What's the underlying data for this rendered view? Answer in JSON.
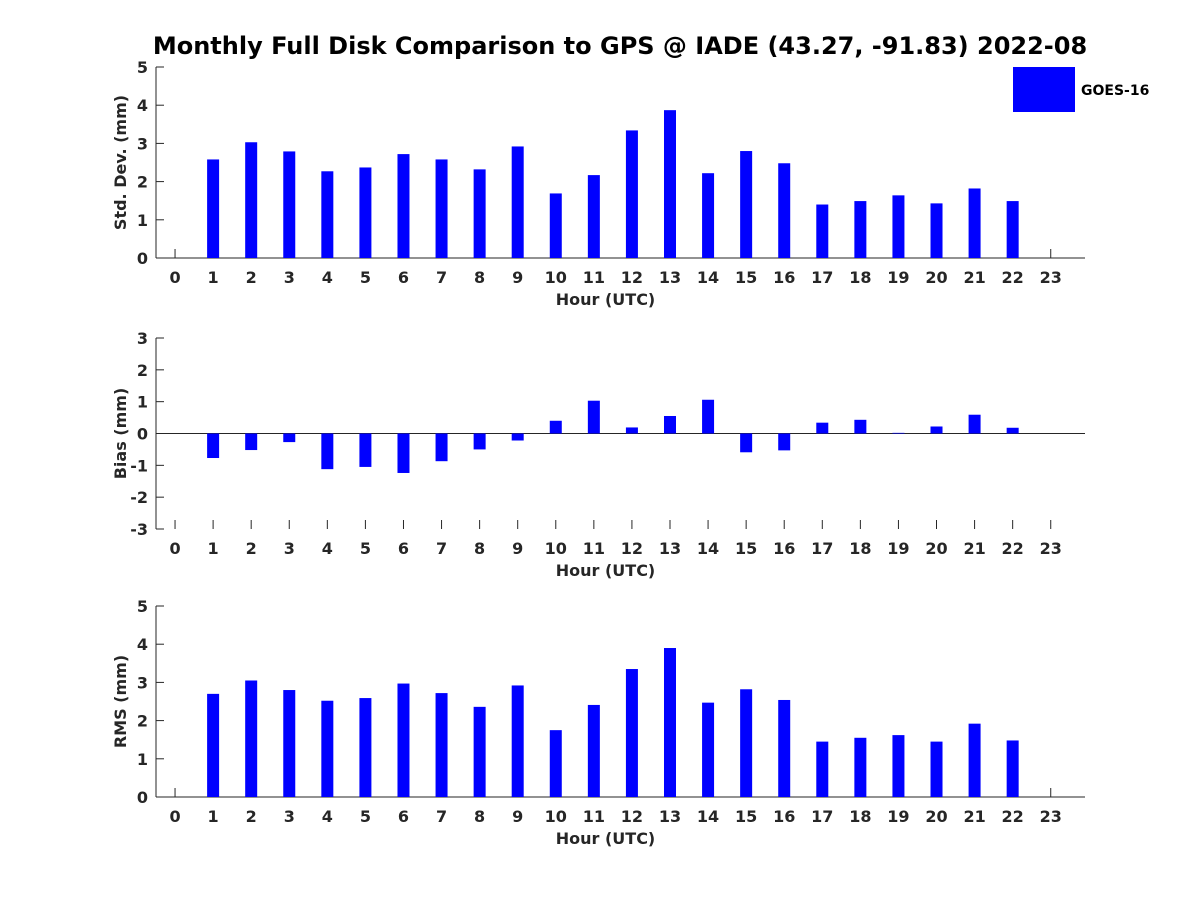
{
  "chart_data": {
    "title": "Monthly Full Disk Comparison to GPS @ IADE (43.27, -91.83) 2022-08",
    "legend": {
      "placement": "top-right",
      "entries": [
        "GOES-16"
      ]
    },
    "color": "#0000ff",
    "panels": [
      {
        "type": "bar",
        "xlabel": "Hour (UTC)",
        "ylabel": "Std. Dev. (mm)",
        "ylim": [
          0,
          5
        ],
        "yticks": [
          0,
          1,
          2,
          3,
          4,
          5
        ],
        "grid": false,
        "x": [
          0,
          1,
          2,
          3,
          4,
          5,
          6,
          7,
          8,
          9,
          10,
          11,
          12,
          13,
          14,
          15,
          16,
          17,
          18,
          19,
          20,
          21,
          22,
          23
        ],
        "series": [
          {
            "name": "GOES-16",
            "values": [
              null,
              2.58,
              3.03,
              2.79,
              2.27,
              2.37,
              2.72,
              2.58,
              2.32,
              2.92,
              1.69,
              2.17,
              3.34,
              3.87,
              2.22,
              2.8,
              2.48,
              1.4,
              1.49,
              1.64,
              1.43,
              1.82,
              1.49,
              null
            ]
          }
        ]
      },
      {
        "type": "bar",
        "xlabel": "Hour (UTC)",
        "ylabel": "Bias (mm)",
        "ylim": [
          -3,
          3
        ],
        "yticks": [
          -3,
          -2,
          -1,
          0,
          1,
          2,
          3
        ],
        "grid": false,
        "x": [
          0,
          1,
          2,
          3,
          4,
          5,
          6,
          7,
          8,
          9,
          10,
          11,
          12,
          13,
          14,
          15,
          16,
          17,
          18,
          19,
          20,
          21,
          22,
          23
        ],
        "series": [
          {
            "name": "GOES-16",
            "values": [
              null,
              -0.77,
              -0.52,
              -0.27,
              -1.12,
              -1.05,
              -1.24,
              -0.87,
              -0.5,
              -0.22,
              0.4,
              1.03,
              0.19,
              0.55,
              1.06,
              -0.59,
              -0.53,
              0.34,
              0.43,
              0.02,
              0.22,
              0.59,
              0.18,
              null
            ]
          }
        ]
      },
      {
        "type": "bar",
        "xlabel": "Hour (UTC)",
        "ylabel": "RMS (mm)",
        "ylim": [
          0,
          5
        ],
        "yticks": [
          0,
          1,
          2,
          3,
          4,
          5
        ],
        "grid": false,
        "x": [
          0,
          1,
          2,
          3,
          4,
          5,
          6,
          7,
          8,
          9,
          10,
          11,
          12,
          13,
          14,
          15,
          16,
          17,
          18,
          19,
          20,
          21,
          22,
          23
        ],
        "series": [
          {
            "name": "GOES-16",
            "values": [
              null,
              2.7,
              3.05,
              2.8,
              2.52,
              2.59,
              2.97,
              2.72,
              2.36,
              2.92,
              1.75,
              2.41,
              3.35,
              3.9,
              2.47,
              2.82,
              2.54,
              1.45,
              1.55,
              1.62,
              1.45,
              1.92,
              1.48,
              null
            ]
          }
        ]
      }
    ]
  }
}
